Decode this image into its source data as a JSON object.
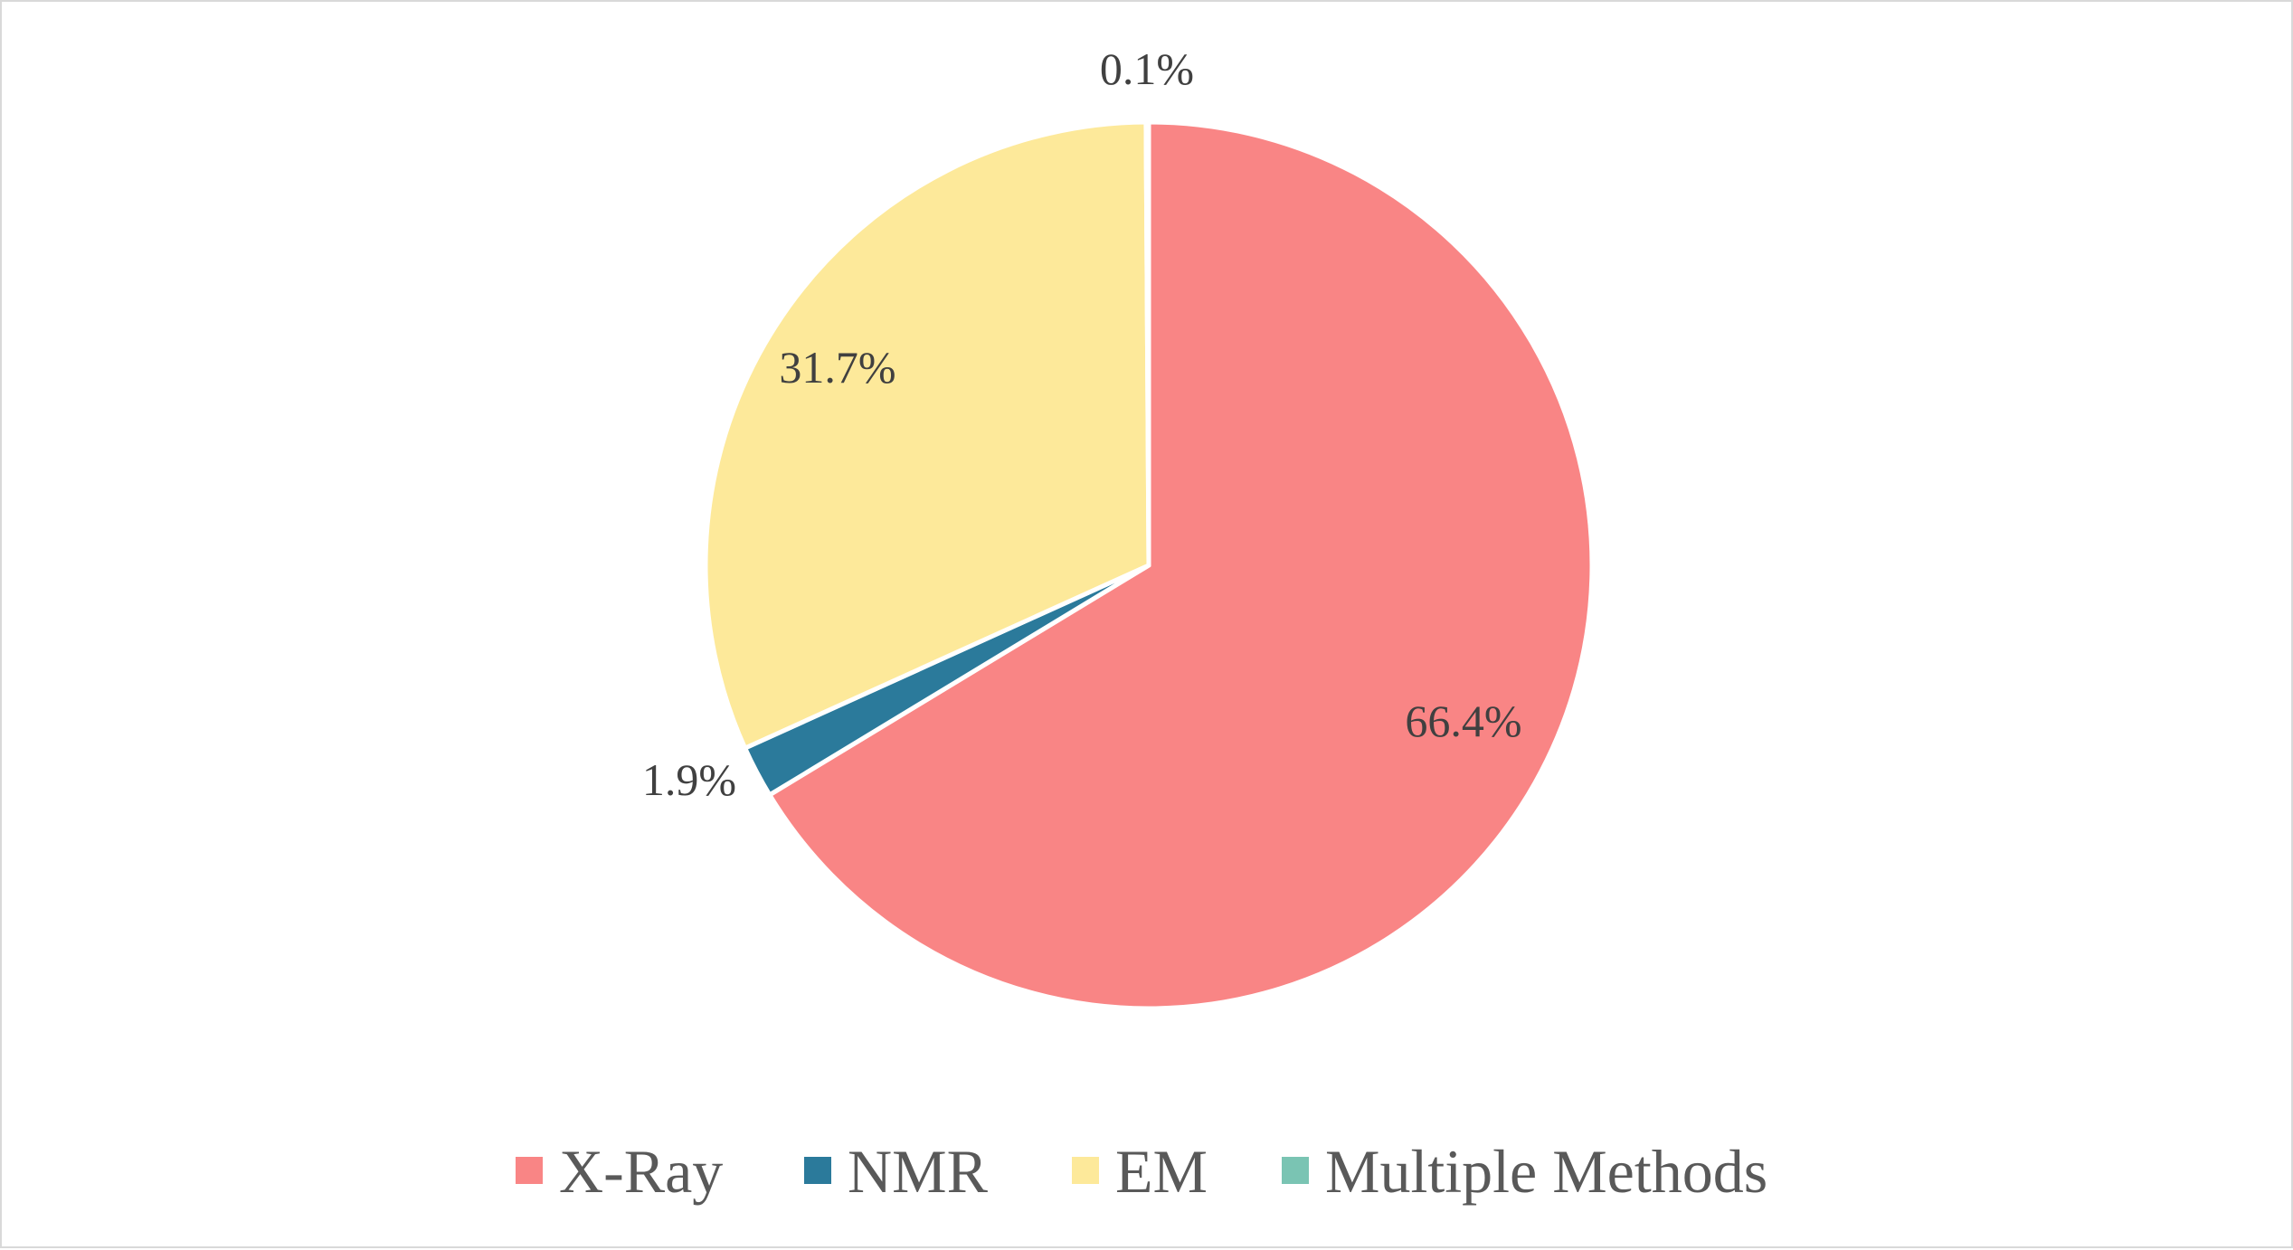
{
  "chart_data": {
    "type": "pie",
    "title": "",
    "slices": [
      {
        "name": "X-Ray",
        "value": 66.4,
        "label": "66.4%",
        "color": "#f98585"
      },
      {
        "name": "NMR",
        "value": 1.9,
        "label": "1.9%",
        "color": "#2b7a9b"
      },
      {
        "name": "EM",
        "value": 31.7,
        "label": "31.7%",
        "color": "#fde99a"
      },
      {
        "name": "Multiple Methods",
        "value": 0.1,
        "label": "0.1%",
        "color": "#7ac4b3"
      }
    ],
    "legend": {
      "position": "bottom"
    }
  }
}
